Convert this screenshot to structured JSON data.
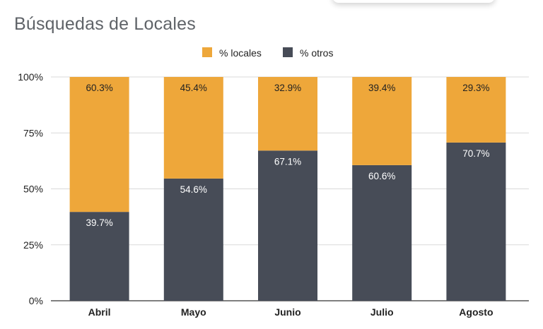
{
  "chart_data": {
    "type": "bar",
    "stacked": true,
    "title": "Búsquedas de Locales",
    "categories": [
      "Abril",
      "Mayo",
      "Junio",
      "Julio",
      "Agosto"
    ],
    "series": [
      {
        "name": "% otros",
        "values": [
          39.7,
          54.6,
          67.1,
          60.6,
          70.7
        ],
        "color": "#474c57",
        "labels": [
          "39.7%",
          "54.6%",
          "67.1%",
          "60.6%",
          "70.7%"
        ]
      },
      {
        "name": "% locales",
        "values": [
          60.3,
          45.4,
          32.9,
          39.4,
          29.3
        ],
        "color": "#eea73a",
        "labels": [
          "60.3%",
          "45.4%",
          "32.9%",
          "39.4%",
          "29.3%"
        ]
      }
    ],
    "legend_order": [
      "% locales",
      "% otros"
    ],
    "legend_position": "top",
    "ylim": [
      0,
      100
    ],
    "y_ticks": [
      "0%",
      "25%",
      "50%",
      "75%",
      "100%"
    ],
    "grid": true
  }
}
